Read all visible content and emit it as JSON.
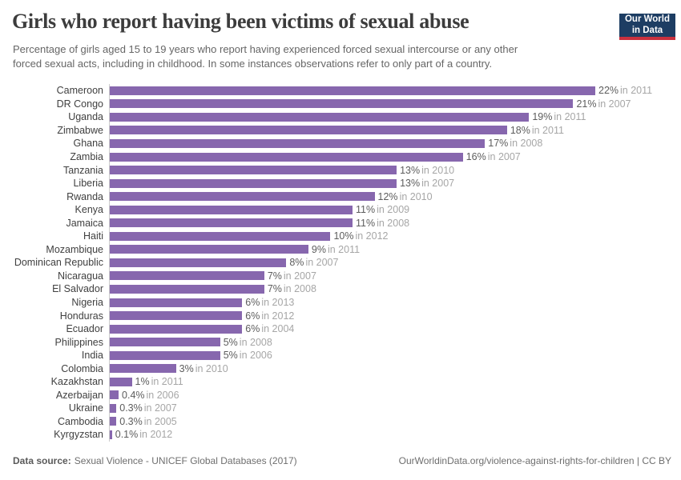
{
  "header": {
    "title": "Girls who report having been victims of sexual abuse",
    "subtitle_lines": [
      "Percentage of girls aged 15 to 19 years who report having experienced forced sexual intercourse or any other",
      "forced sexual acts, including in childhood. In some instances observations refer to only part of a country."
    ],
    "logo": {
      "line1": "Our World",
      "line2": "in Data"
    }
  },
  "chart_data": {
    "type": "bar",
    "orientation": "horizontal",
    "title": "Girls who report having been victims of sexual abuse",
    "categories": [
      "Cameroon",
      "DR Congo",
      "Uganda",
      "Zimbabwe",
      "Ghana",
      "Zambia",
      "Tanzania",
      "Liberia",
      "Rwanda",
      "Kenya",
      "Jamaica",
      "Haiti",
      "Mozambique",
      "Dominican Republic",
      "Nicaragua",
      "El Salvador",
      "Nigeria",
      "Honduras",
      "Ecuador",
      "Philippines",
      "India",
      "Colombia",
      "Kazakhstan",
      "Azerbaijan",
      "Ukraine",
      "Cambodia",
      "Kyrgyzstan"
    ],
    "values": [
      22,
      21,
      19,
      18,
      17,
      16,
      13,
      13,
      12,
      11,
      11,
      10,
      9,
      8,
      7,
      7,
      6,
      6,
      6,
      5,
      5,
      3,
      1,
      0.4,
      0.3,
      0.3,
      0.1
    ],
    "years": [
      2011,
      2007,
      2011,
      2011,
      2008,
      2007,
      2010,
      2007,
      2010,
      2009,
      2008,
      2012,
      2011,
      2007,
      2007,
      2008,
      2013,
      2012,
      2004,
      2008,
      2006,
      2010,
      2011,
      2006,
      2007,
      2005,
      2012
    ],
    "unit": "%",
    "year_prefix": "in",
    "xlim": [
      0,
      22
    ],
    "bar_color": "#8767ae",
    "axis_line_color": "#cccccc",
    "grid": false,
    "legend": false
  },
  "footer": {
    "datasource_label": "Data source:",
    "datasource_value": "Sexual Violence - UNICEF Global Databases (2017)",
    "attribution": "OurWorldinData.org/violence-against-rights-for-children | CC BY"
  }
}
